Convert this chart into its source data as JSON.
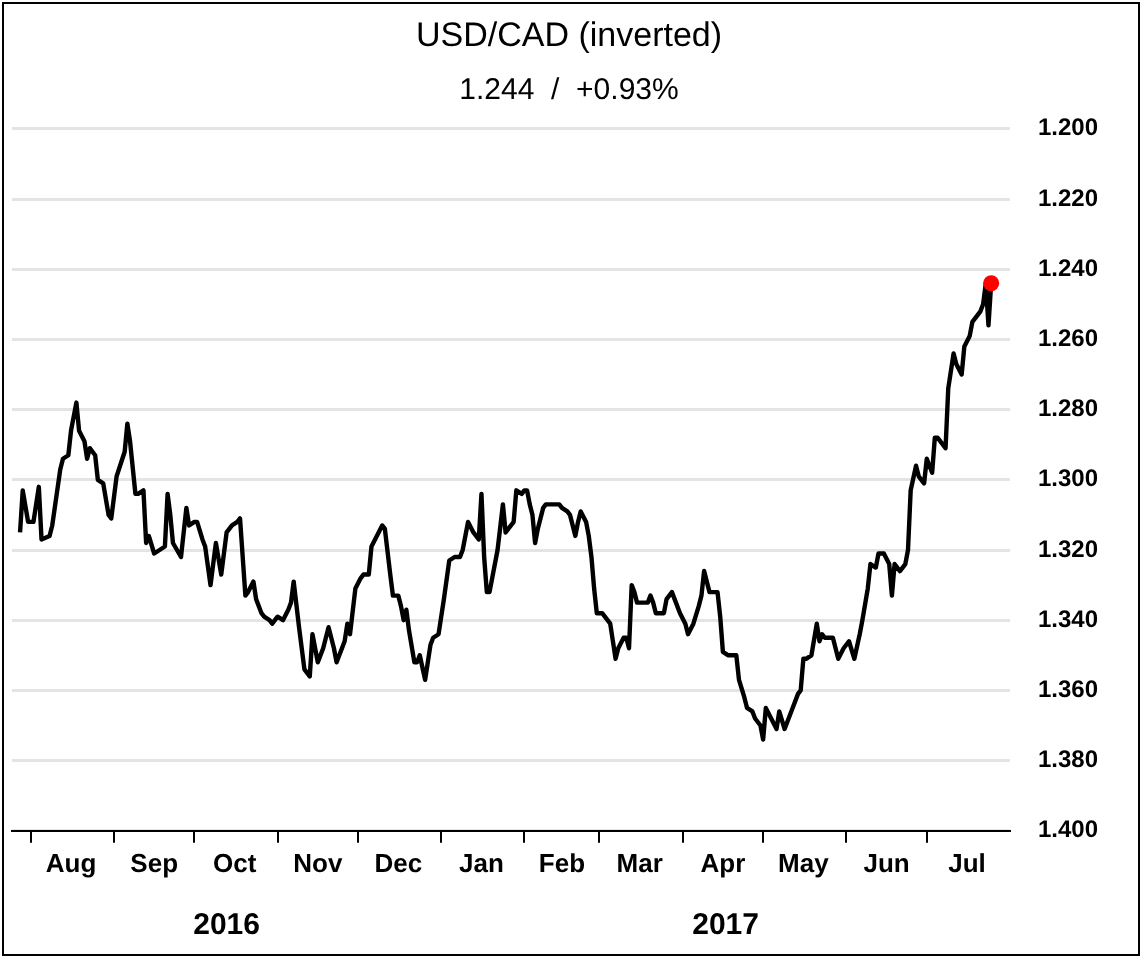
{
  "chart_data": {
    "type": "line",
    "title": "USD/CAD (inverted)",
    "subtitle": "1.244  /  +0.93%",
    "series": [
      {
        "type": "line",
        "color": "#000000",
        "marker": "none",
        "x": [
          "2016-07-28",
          "2016-07-29",
          "2016-07-31",
          "2016-08-02",
          "2016-08-04",
          "2016-08-05",
          "2016-08-08",
          "2016-08-09",
          "2016-08-12",
          "2016-08-13",
          "2016-08-15",
          "2016-08-16",
          "2016-08-18",
          "2016-08-19",
          "2016-08-21",
          "2016-08-22",
          "2016-08-23",
          "2016-08-25",
          "2016-08-26",
          "2016-08-28",
          "2016-08-30",
          "2016-08-31",
          "2016-09-02",
          "2016-09-05",
          "2016-09-06",
          "2016-09-07",
          "2016-09-09",
          "2016-09-10",
          "2016-09-12",
          "2016-09-13",
          "2016-09-14",
          "2016-09-16",
          "2016-09-18",
          "2016-09-20",
          "2016-09-21",
          "2016-09-22",
          "2016-09-23",
          "2016-09-26",
          "2016-09-28",
          "2016-09-29",
          "2016-10-01",
          "2016-10-02",
          "2016-10-04",
          "2016-10-05",
          "2016-10-07",
          "2016-10-08",
          "2016-10-09",
          "2016-10-11",
          "2016-10-13",
          "2016-10-15",
          "2016-10-17",
          "2016-10-18",
          "2016-10-20",
          "2016-10-21",
          "2016-10-23",
          "2016-10-24",
          "2016-10-26",
          "2016-10-27",
          "2016-10-29",
          "2016-10-30",
          "2016-11-01",
          "2016-11-03",
          "2016-11-05",
          "2016-11-06",
          "2016-11-07",
          "2016-11-09",
          "2016-11-11",
          "2016-11-13",
          "2016-11-14",
          "2016-11-16",
          "2016-11-18",
          "2016-11-20",
          "2016-11-22",
          "2016-11-23",
          "2016-11-26",
          "2016-11-27",
          "2016-11-28",
          "2016-11-30",
          "2016-12-02",
          "2016-12-03",
          "2016-12-05",
          "2016-12-06",
          "2016-12-08",
          "2016-12-10",
          "2016-12-11",
          "2016-12-13",
          "2016-12-14",
          "2016-12-16",
          "2016-12-17",
          "2016-12-18",
          "2016-12-19",
          "2016-12-20",
          "2016-12-22",
          "2016-12-23",
          "2016-12-24",
          "2016-12-26",
          "2016-12-28",
          "2016-12-29",
          "2016-12-31",
          "2017-01-02",
          "2017-01-04",
          "2017-01-06",
          "2017-01-08",
          "2017-01-09",
          "2017-01-11",
          "2017-01-13",
          "2017-01-15",
          "2017-01-16",
          "2017-01-17",
          "2017-01-18",
          "2017-01-19",
          "2017-01-20",
          "2017-01-22",
          "2017-01-24",
          "2017-01-25",
          "2017-01-26",
          "2017-01-28",
          "2017-01-29",
          "2017-01-31",
          "2017-02-01",
          "2017-02-02",
          "2017-02-03",
          "2017-02-04",
          "2017-02-05",
          "2017-02-06",
          "2017-02-08",
          "2017-02-09",
          "2017-02-11",
          "2017-02-12",
          "2017-02-14",
          "2017-02-15",
          "2017-02-17",
          "2017-02-18",
          "2017-02-20",
          "2017-02-21",
          "2017-02-22",
          "2017-02-24",
          "2017-02-25",
          "2017-02-26",
          "2017-02-27",
          "2017-02-28",
          "2017-03-02",
          "2017-03-03",
          "2017-03-05",
          "2017-03-06",
          "2017-03-07",
          "2017-03-08",
          "2017-03-10",
          "2017-03-11",
          "2017-03-12",
          "2017-03-13",
          "2017-03-14",
          "2017-03-15",
          "2017-03-17",
          "2017-03-19",
          "2017-03-20",
          "2017-03-21",
          "2017-03-22",
          "2017-03-24",
          "2017-03-25",
          "2017-03-26",
          "2017-03-28",
          "2017-03-29",
          "2017-03-31",
          "2017-04-02",
          "2017-04-03",
          "2017-04-05",
          "2017-04-07",
          "2017-04-08",
          "2017-04-09",
          "2017-04-11",
          "2017-04-12",
          "2017-04-14",
          "2017-04-15",
          "2017-04-16",
          "2017-04-18",
          "2017-04-21",
          "2017-04-22",
          "2017-04-24",
          "2017-04-25",
          "2017-04-27",
          "2017-04-28",
          "2017-04-30",
          "2017-05-01",
          "2017-05-02",
          "2017-05-04",
          "2017-05-06",
          "2017-05-07",
          "2017-05-09",
          "2017-05-10",
          "2017-05-12",
          "2017-05-14",
          "2017-05-15",
          "2017-05-16",
          "2017-05-17",
          "2017-05-19",
          "2017-05-21",
          "2017-05-22",
          "2017-05-23",
          "2017-05-24",
          "2017-05-27",
          "2017-05-29",
          "2017-05-31",
          "2017-06-02",
          "2017-06-04",
          "2017-06-06",
          "2017-06-07",
          "2017-06-09",
          "2017-06-10",
          "2017-06-12",
          "2017-06-13",
          "2017-06-15",
          "2017-06-17",
          "2017-06-18",
          "2017-06-19",
          "2017-06-21",
          "2017-06-23",
          "2017-06-24",
          "2017-06-25",
          "2017-06-27",
          "2017-06-28",
          "2017-06-30",
          "2017-07-01",
          "2017-07-03",
          "2017-07-04",
          "2017-07-05",
          "2017-07-08",
          "2017-07-09",
          "2017-07-11",
          "2017-07-12",
          "2017-07-14",
          "2017-07-15",
          "2017-07-17",
          "2017-07-18",
          "2017-07-20",
          "2017-07-21",
          "2017-07-22",
          "2017-07-23",
          "2017-07-24",
          "2017-07-25"
        ],
        "values": [
          1.315,
          1.303,
          1.312,
          1.312,
          1.302,
          1.317,
          1.316,
          1.313,
          1.297,
          1.294,
          1.293,
          1.286,
          1.278,
          1.286,
          1.289,
          1.294,
          1.291,
          1.293,
          1.3,
          1.301,
          1.31,
          1.311,
          1.299,
          1.292,
          1.284,
          1.289,
          1.304,
          1.304,
          1.303,
          1.318,
          1.316,
          1.321,
          1.32,
          1.319,
          1.304,
          1.31,
          1.318,
          1.322,
          1.308,
          1.313,
          1.312,
          1.312,
          1.317,
          1.319,
          1.33,
          1.324,
          1.318,
          1.327,
          1.315,
          1.313,
          1.312,
          1.311,
          1.333,
          1.332,
          1.329,
          1.334,
          1.338,
          1.339,
          1.34,
          1.341,
          1.339,
          1.34,
          1.337,
          1.335,
          1.329,
          1.342,
          1.354,
          1.356,
          1.344,
          1.352,
          1.348,
          1.342,
          1.348,
          1.352,
          1.346,
          1.341,
          1.344,
          1.331,
          1.328,
          1.327,
          1.327,
          1.319,
          1.316,
          1.313,
          1.314,
          1.327,
          1.333,
          1.333,
          1.336,
          1.34,
          1.337,
          1.343,
          1.352,
          1.352,
          1.35,
          1.357,
          1.347,
          1.345,
          1.344,
          1.334,
          1.323,
          1.322,
          1.322,
          1.32,
          1.312,
          1.315,
          1.317,
          1.304,
          1.322,
          1.332,
          1.332,
          1.328,
          1.32,
          1.307,
          1.315,
          1.314,
          1.312,
          1.303,
          1.304,
          1.303,
          1.303,
          1.307,
          1.31,
          1.318,
          1.314,
          1.308,
          1.307,
          1.307,
          1.307,
          1.307,
          1.308,
          1.309,
          1.31,
          1.316,
          1.312,
          1.309,
          1.312,
          1.316,
          1.322,
          1.331,
          1.338,
          1.338,
          1.339,
          1.341,
          1.346,
          1.351,
          1.348,
          1.345,
          1.345,
          1.348,
          1.33,
          1.332,
          1.335,
          1.335,
          1.335,
          1.333,
          1.335,
          1.338,
          1.338,
          1.338,
          1.334,
          1.332,
          1.334,
          1.338,
          1.341,
          1.344,
          1.341,
          1.336,
          1.333,
          1.326,
          1.332,
          1.332,
          1.332,
          1.339,
          1.349,
          1.35,
          1.35,
          1.357,
          1.362,
          1.365,
          1.366,
          1.368,
          1.37,
          1.374,
          1.365,
          1.368,
          1.371,
          1.366,
          1.371,
          1.369,
          1.365,
          1.361,
          1.36,
          1.351,
          1.351,
          1.35,
          1.341,
          1.346,
          1.344,
          1.345,
          1.345,
          1.351,
          1.348,
          1.346,
          1.351,
          1.344,
          1.34,
          1.331,
          1.324,
          1.325,
          1.321,
          1.321,
          1.324,
          1.333,
          1.324,
          1.326,
          1.324,
          1.32,
          1.303,
          1.296,
          1.299,
          1.301,
          1.294,
          1.298,
          1.288,
          1.288,
          1.291,
          1.274,
          1.264,
          1.267,
          1.27,
          1.262,
          1.259,
          1.255,
          1.253,
          1.252,
          1.25,
          1.244,
          1.256,
          1.244
        ]
      },
      {
        "type": "scatter",
        "color": "#ff0000",
        "marker": "circle",
        "x": [
          "2017-07-25"
        ],
        "values": [
          1.244
        ]
      }
    ],
    "xlim": [
      "2016-07-25",
      "2017-08-01"
    ],
    "xticks": [
      {
        "value": "2016-08-01",
        "label": null
      },
      {
        "value": "2016-08-16",
        "label": "Aug"
      },
      {
        "value": "2016-09-01",
        "label": null
      },
      {
        "value": "2016-09-16",
        "label": "Sep"
      },
      {
        "value": "2016-10-01",
        "label": null
      },
      {
        "value": "2016-10-16",
        "label": "Oct"
      },
      {
        "value": "2016-11-01",
        "label": null
      },
      {
        "value": "2016-11-16",
        "label": "Nov"
      },
      {
        "value": "2016-12-01",
        "label": null
      },
      {
        "value": "2016-12-16",
        "label": "Dec"
      },
      {
        "value": "2017-01-01",
        "label": null
      },
      {
        "value": "2017-01-16",
        "label": "Jan"
      },
      {
        "value": "2017-02-01",
        "label": null
      },
      {
        "value": "2017-02-15",
        "label": "Feb"
      },
      {
        "value": "2017-03-01",
        "label": null
      },
      {
        "value": "2017-03-16",
        "label": "Mar"
      },
      {
        "value": "2017-04-01",
        "label": null
      },
      {
        "value": "2017-04-16",
        "label": "Apr"
      },
      {
        "value": "2017-05-01",
        "label": null
      },
      {
        "value": "2017-05-16",
        "label": "May"
      },
      {
        "value": "2017-06-01",
        "label": null
      },
      {
        "value": "2017-06-16",
        "label": "Jun"
      },
      {
        "value": "2017-07-01",
        "label": null
      },
      {
        "value": "2017-07-16",
        "label": "Jul"
      }
    ],
    "ylim": [
      1.4,
      1.2
    ],
    "yticks": [
      {
        "value": 1.2,
        "label": "1.200"
      },
      {
        "value": 1.22,
        "label": "1.220"
      },
      {
        "value": 1.24,
        "label": "1.240"
      },
      {
        "value": 1.26,
        "label": "1.260"
      },
      {
        "value": 1.28,
        "label": "1.280"
      },
      {
        "value": 1.3,
        "label": "1.300"
      },
      {
        "value": 1.32,
        "label": "1.320"
      },
      {
        "value": 1.34,
        "label": "1.340"
      },
      {
        "value": 1.36,
        "label": "1.360"
      },
      {
        "value": 1.38,
        "label": "1.380"
      },
      {
        "value": 1.4,
        "label": "1.400"
      }
    ],
    "annotations": [
      "2016",
      "2017"
    ],
    "grid": "y",
    "legend": false,
    "line_style": "solid"
  }
}
